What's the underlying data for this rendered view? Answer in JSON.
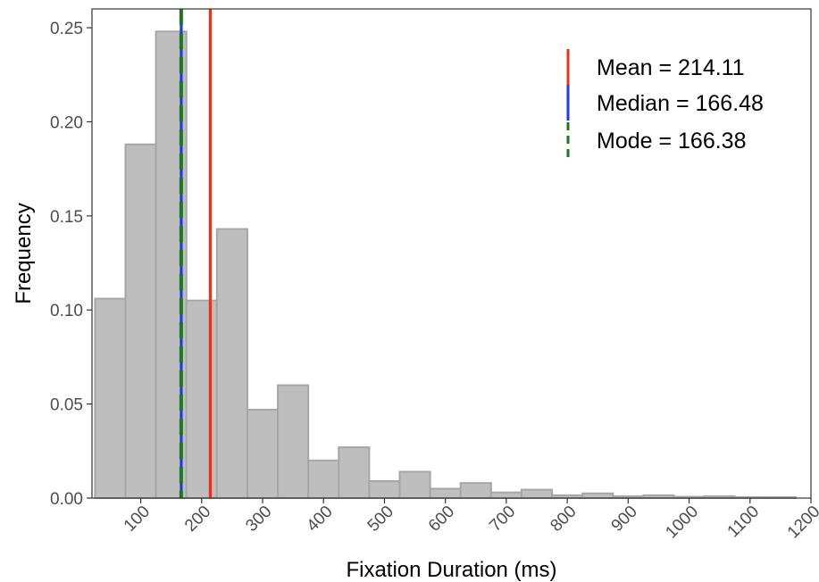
{
  "chart_data": {
    "type": "bar",
    "subtype": "histogram",
    "title": "",
    "xlabel": "Fixation Duration (ms)",
    "ylabel": "Frequency",
    "xlim": [
      20,
      1200
    ],
    "ylim": [
      0,
      0.26
    ],
    "x_ticks": [
      100,
      200,
      300,
      400,
      500,
      600,
      700,
      800,
      900,
      1000,
      1100,
      1200
    ],
    "x_tick_labels": [
      "100",
      "200",
      "300",
      "400",
      "500",
      "600",
      "700",
      "800",
      "900",
      "1000",
      "1100",
      "1200"
    ],
    "y_ticks": [
      0.0,
      0.05,
      0.1,
      0.15,
      0.2,
      0.25
    ],
    "y_tick_labels": [
      "0.00",
      "0.05",
      "0.10",
      "0.15",
      "0.20",
      "0.25"
    ],
    "bin_width": 50,
    "bins": [
      {
        "start": 25,
        "end": 75,
        "value": 0.106
      },
      {
        "start": 75,
        "end": 125,
        "value": 0.188
      },
      {
        "start": 125,
        "end": 175,
        "value": 0.248
      },
      {
        "start": 175,
        "end": 225,
        "value": 0.105
      },
      {
        "start": 225,
        "end": 275,
        "value": 0.143
      },
      {
        "start": 275,
        "end": 325,
        "value": 0.047
      },
      {
        "start": 325,
        "end": 375,
        "value": 0.06
      },
      {
        "start": 375,
        "end": 425,
        "value": 0.02
      },
      {
        "start": 425,
        "end": 475,
        "value": 0.027
      },
      {
        "start": 475,
        "end": 525,
        "value": 0.009
      },
      {
        "start": 525,
        "end": 575,
        "value": 0.014
      },
      {
        "start": 575,
        "end": 625,
        "value": 0.005
      },
      {
        "start": 625,
        "end": 675,
        "value": 0.008
      },
      {
        "start": 675,
        "end": 725,
        "value": 0.003
      },
      {
        "start": 725,
        "end": 775,
        "value": 0.0045
      },
      {
        "start": 775,
        "end": 825,
        "value": 0.0015
      },
      {
        "start": 825,
        "end": 875,
        "value": 0.0025
      },
      {
        "start": 875,
        "end": 925,
        "value": 0.001
      },
      {
        "start": 925,
        "end": 975,
        "value": 0.0015
      },
      {
        "start": 975,
        "end": 1025,
        "value": 0.0007
      },
      {
        "start": 1025,
        "end": 1075,
        "value": 0.001
      },
      {
        "start": 1075,
        "end": 1125,
        "value": 0.0005
      },
      {
        "start": 1125,
        "end": 1175,
        "value": 0.0005
      }
    ],
    "reference_lines": [
      {
        "name": "Mean",
        "value": 214.11,
        "label": "Mean = 214.11",
        "color": "#e8331c",
        "style": "solid"
      },
      {
        "name": "Median",
        "value": 166.48,
        "label": "Median = 166.48",
        "color": "#1c3ce8",
        "style": "solid"
      },
      {
        "name": "Mode",
        "value": 166.38,
        "label": "Mode = 166.38",
        "color": "#1a7a1a",
        "style": "dashed"
      }
    ],
    "bar_fill": "#bebebe",
    "bar_stroke": "#a6a6a6",
    "grid": false,
    "legend_position": "top-right"
  }
}
